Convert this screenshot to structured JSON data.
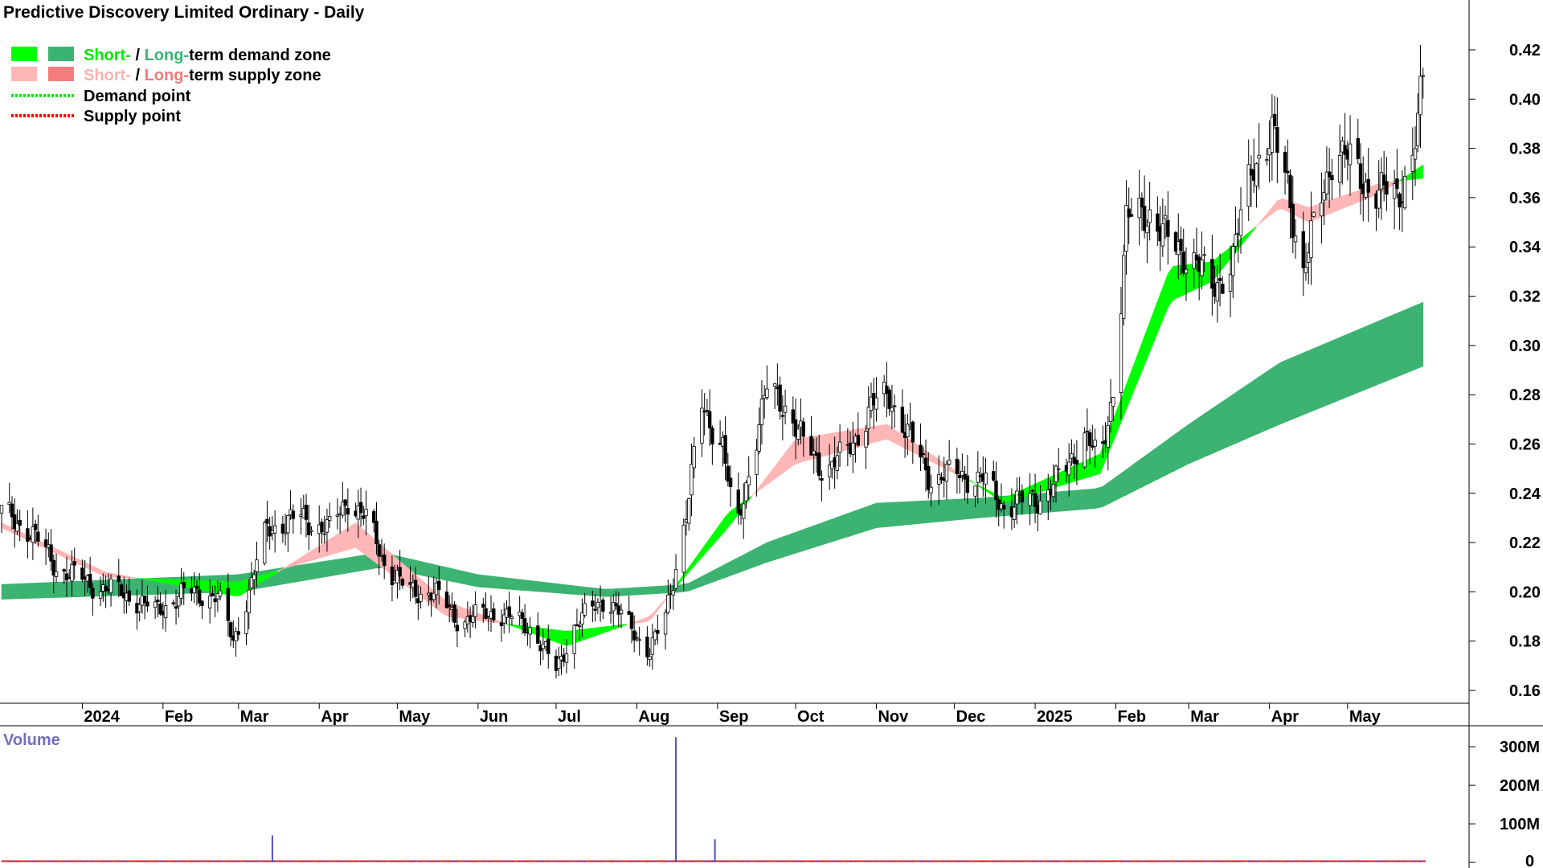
{
  "chart_data": {
    "type": "candlestick",
    "title": "Predictive Discovery Limited Ordinary - Daily",
    "legend": [
      {
        "pre": "Short-",
        "sep": " / ",
        "mid": "Long-",
        "post": "term demand zone",
        "sw1": "#00ff00",
        "sw2": "#3cb371",
        "pre_color": "#00ee00",
        "mid_color": "#3cb371"
      },
      {
        "pre": "Short-",
        "sep": " / ",
        "mid": "Long-",
        "post": "term supply zone",
        "sw1": "#ffb6b6",
        "sw2": "#f47c7c",
        "pre_color": "#ffb0b0",
        "mid_color": "#f07a7a"
      },
      {
        "line_color": "#00ee00",
        "label": "Demand point"
      },
      {
        "line_color": "#ff0000",
        "label": "Supply point"
      }
    ],
    "y_ticks": [
      "0.42",
      "0.40",
      "0.38",
      "0.36",
      "0.34",
      "0.32",
      "0.30",
      "0.28",
      "0.26",
      "0.24",
      "0.22",
      "0.20",
      "0.18",
      "0.16"
    ],
    "ylim": [
      0.155,
      0.435
    ],
    "x_ticks": [
      "2024",
      "Feb",
      "Mar",
      "Apr",
      "May",
      "Jun",
      "Jul",
      "Aug",
      "Sep",
      "Oct",
      "Nov",
      "Dec",
      "2025",
      "Feb",
      "Mar",
      "Apr",
      "May"
    ],
    "x_tick_dates": [
      "2024-01-01",
      "2024-02-01",
      "2024-03-01",
      "2024-04-01",
      "2024-05-01",
      "2024-06-01",
      "2024-07-01",
      "2024-08-01",
      "2024-09-01",
      "2024-10-01",
      "2024-11-01",
      "2024-12-01",
      "2025-01-01",
      "2025-02-01",
      "2025-03-01",
      "2025-04-01",
      "2025-05-01"
    ],
    "x_range": [
      "2023-12-01",
      "2025-05-31"
    ],
    "price_anchors": [
      [
        "2023-12-01",
        0.232
      ],
      [
        "2023-12-12",
        0.225
      ],
      [
        "2023-12-22",
        0.21
      ],
      [
        "2024-01-05",
        0.203
      ],
      [
        "2024-01-20",
        0.198
      ],
      [
        "2024-01-29",
        0.192
      ],
      [
        "2024-02-10",
        0.2
      ],
      [
        "2024-02-22",
        0.198
      ],
      [
        "2024-02-28",
        0.18
      ],
      [
        "2024-03-05",
        0.2
      ],
      [
        "2024-03-12",
        0.226
      ],
      [
        "2024-03-25",
        0.23
      ],
      [
        "2024-04-05",
        0.225
      ],
      [
        "2024-04-12",
        0.238
      ],
      [
        "2024-04-20",
        0.228
      ],
      [
        "2024-04-26",
        0.212
      ],
      [
        "2024-05-05",
        0.2
      ],
      [
        "2024-05-15",
        0.2
      ],
      [
        "2024-05-25",
        0.188
      ],
      [
        "2024-06-08",
        0.192
      ],
      [
        "2024-06-22",
        0.185
      ],
      [
        "2024-07-01",
        0.168
      ],
      [
        "2024-07-08",
        0.186
      ],
      [
        "2024-07-20",
        0.198
      ],
      [
        "2024-07-26",
        0.19
      ],
      [
        "2024-08-06",
        0.176
      ],
      [
        "2024-08-12",
        0.19
      ],
      [
        "2024-08-20",
        0.232
      ],
      [
        "2024-08-26",
        0.275
      ],
      [
        "2024-09-03",
        0.26
      ],
      [
        "2024-09-08",
        0.222
      ],
      [
        "2024-09-14",
        0.255
      ],
      [
        "2024-09-20",
        0.282
      ],
      [
        "2024-09-28",
        0.275
      ],
      [
        "2024-10-04",
        0.26
      ],
      [
        "2024-10-12",
        0.25
      ],
      [
        "2024-10-20",
        0.255
      ],
      [
        "2024-10-30",
        0.275
      ],
      [
        "2024-11-06",
        0.28
      ],
      [
        "2024-11-14",
        0.262
      ],
      [
        "2024-11-22",
        0.246
      ],
      [
        "2024-12-03",
        0.248
      ],
      [
        "2024-12-12",
        0.245
      ],
      [
        "2024-12-20",
        0.235
      ],
      [
        "2025-01-03",
        0.238
      ],
      [
        "2025-01-12",
        0.248
      ],
      [
        "2025-01-20",
        0.265
      ],
      [
        "2025-01-26",
        0.25
      ],
      [
        "2025-02-01",
        0.29
      ],
      [
        "2025-02-05",
        0.35
      ],
      [
        "2025-02-14",
        0.355
      ],
      [
        "2025-02-22",
        0.34
      ],
      [
        "2025-03-03",
        0.336
      ],
      [
        "2025-03-10",
        0.322
      ],
      [
        "2025-03-18",
        0.336
      ],
      [
        "2025-03-26",
        0.375
      ],
      [
        "2025-04-02",
        0.385
      ],
      [
        "2025-04-08",
        0.365
      ],
      [
        "2025-04-14",
        0.33
      ],
      [
        "2025-04-20",
        0.355
      ],
      [
        "2025-04-26",
        0.382
      ],
      [
        "2025-05-06",
        0.368
      ],
      [
        "2025-05-14",
        0.362
      ],
      [
        "2025-05-20",
        0.36
      ],
      [
        "2025-05-26",
        0.378
      ],
      [
        "2025-05-30",
        0.405
      ]
    ],
    "short_zone": [
      [
        "2023-12-01",
        0.228,
        0.226
      ],
      [
        "2024-01-10",
        0.208,
        0.206
      ],
      [
        "2024-03-01",
        0.198,
        0.204
      ],
      [
        "2024-04-15",
        0.228,
        0.218
      ],
      [
        "2024-05-20",
        0.196,
        0.19
      ],
      [
        "2024-07-05",
        0.178,
        0.184
      ],
      [
        "2024-08-06",
        0.19,
        0.188
      ],
      [
        "2024-09-05",
        0.226,
        0.232
      ],
      [
        "2024-10-01",
        0.262,
        0.252
      ],
      [
        "2024-11-05",
        0.268,
        0.262
      ],
      [
        "2024-12-20",
        0.236,
        0.238
      ],
      [
        "2025-01-26",
        0.248,
        0.256
      ],
      [
        "2025-02-22",
        0.318,
        0.332
      ],
      [
        "2025-03-10",
        0.326,
        0.334
      ],
      [
        "2025-04-05",
        0.36,
        0.356
      ],
      [
        "2025-04-16",
        0.356,
        0.35
      ],
      [
        "2025-05-14",
        0.366,
        0.362
      ],
      [
        "2025-05-31",
        0.368,
        0.374
      ]
    ],
    "long_zone": [
      [
        "2023-12-01",
        0.197,
        0.203
      ],
      [
        "2024-03-01",
        0.2,
        0.207
      ],
      [
        "2024-04-25",
        0.21,
        0.216
      ],
      [
        "2024-06-01",
        0.202,
        0.207
      ],
      [
        "2024-07-20",
        0.198,
        0.201
      ],
      [
        "2024-08-20",
        0.2,
        0.203
      ],
      [
        "2024-09-20",
        0.212,
        0.22
      ],
      [
        "2024-11-01",
        0.226,
        0.236
      ],
      [
        "2024-12-10",
        0.23,
        0.238
      ],
      [
        "2025-01-26",
        0.234,
        0.242
      ],
      [
        "2025-03-01",
        0.252,
        0.268
      ],
      [
        "2025-04-05",
        0.268,
        0.293
      ],
      [
        "2025-05-31",
        0.292,
        0.318
      ]
    ],
    "volume_y_ticks": [
      "300M",
      "200M",
      "100M",
      "0"
    ],
    "volume_max": 340000000,
    "volume_spikes": [
      [
        "2024-03-14",
        70000000
      ],
      [
        "2024-08-16",
        325000000
      ],
      [
        "2024-08-31",
        60000000
      ]
    ],
    "volume_ma_level": 3000000
  },
  "volume_panel": {
    "label": "Volume"
  }
}
